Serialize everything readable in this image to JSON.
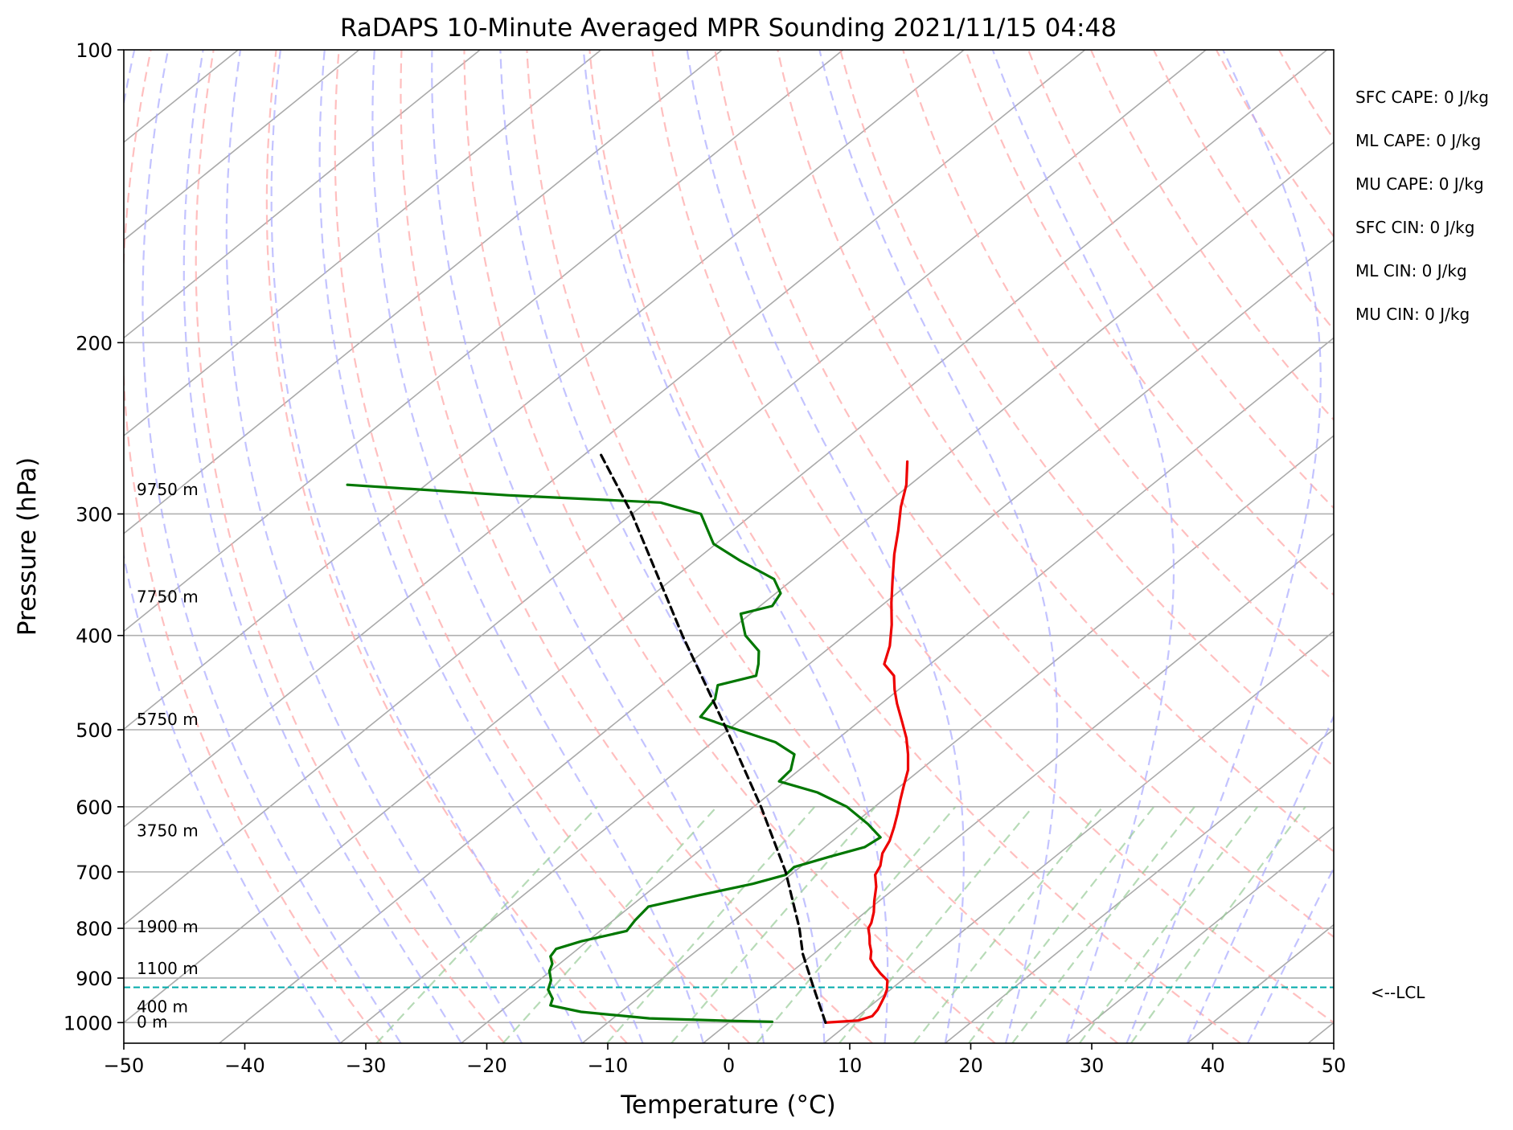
{
  "chart_data": {
    "type": "line",
    "title": "RaDAPS 10-Minute Averaged MPR Sounding 2021/11/15 04:48",
    "xlabel": "Temperature (°C)",
    "ylabel": "Pressure (hPa)",
    "xlim": [
      -50,
      50
    ],
    "ylim": [
      1050,
      100
    ],
    "y_scale": "log",
    "grid": true,
    "skew_t": true,
    "x_ticks": [
      -50,
      -40,
      -30,
      -20,
      -10,
      0,
      10,
      20,
      30,
      40,
      50
    ],
    "x_tick_labels": [
      "−50",
      "−40",
      "−30",
      "−20",
      "−10",
      "0",
      "10",
      "20",
      "30",
      "40",
      "50"
    ],
    "y_ticks": [
      1000,
      900,
      800,
      700,
      600,
      500,
      400,
      300,
      200,
      100
    ],
    "y_tick_labels": [
      "1000",
      "900",
      "800",
      "700",
      "600",
      "500",
      "400",
      "300",
      "200",
      "100"
    ],
    "series": [
      {
        "role": "temperature",
        "color": "#ee0000",
        "points": [
          [
            1000,
            8.0
          ],
          [
            995,
            10.5
          ],
          [
            985,
            11.2
          ],
          [
            970,
            11.0
          ],
          [
            955,
            10.6
          ],
          [
            940,
            10.2
          ],
          [
            925,
            9.7
          ],
          [
            905,
            8.8
          ],
          [
            890,
            7.5
          ],
          [
            875,
            6.3
          ],
          [
            860,
            5.2
          ],
          [
            845,
            4.5
          ],
          [
            830,
            3.6
          ],
          [
            815,
            2.8
          ],
          [
            800,
            1.9
          ],
          [
            790,
            1.6
          ],
          [
            770,
            0.7
          ],
          [
            750,
            -0.4
          ],
          [
            725,
            -1.7
          ],
          [
            705,
            -3.0
          ],
          [
            690,
            -3.5
          ],
          [
            670,
            -4.6
          ],
          [
            650,
            -5.3
          ],
          [
            630,
            -6.3
          ],
          [
            610,
            -7.4
          ],
          [
            590,
            -8.6
          ],
          [
            570,
            -9.8
          ],
          [
            550,
            -11.0
          ],
          [
            530,
            -12.6
          ],
          [
            510,
            -14.4
          ],
          [
            490,
            -16.5
          ],
          [
            470,
            -18.7
          ],
          [
            455,
            -20.3
          ],
          [
            440,
            -21.8
          ],
          [
            428,
            -23.8
          ],
          [
            410,
            -25.2
          ],
          [
            390,
            -27.2
          ],
          [
            370,
            -29.5
          ],
          [
            350,
            -31.8
          ],
          [
            330,
            -34.2
          ],
          [
            312,
            -36.3
          ],
          [
            295,
            -38.5
          ],
          [
            280,
            -40.3
          ],
          [
            265,
            -42.6
          ]
        ]
      },
      {
        "role": "dewpoint",
        "color": "#007700",
        "points": [
          [
            998,
            3.5
          ],
          [
            996,
            0.0
          ],
          [
            990,
            -7.0
          ],
          [
            975,
            -13.3
          ],
          [
            960,
            -16.5
          ],
          [
            945,
            -17.0
          ],
          [
            925,
            -18.3
          ],
          [
            905,
            -19.0
          ],
          [
            885,
            -20.1
          ],
          [
            870,
            -20.6
          ],
          [
            855,
            -21.5
          ],
          [
            840,
            -21.8
          ],
          [
            825,
            -20.5
          ],
          [
            805,
            -17.8
          ],
          [
            785,
            -18.2
          ],
          [
            760,
            -18.5
          ],
          [
            740,
            -15.5
          ],
          [
            720,
            -12.2
          ],
          [
            705,
            -10.4
          ],
          [
            692,
            -10.5
          ],
          [
            675,
            -8.6
          ],
          [
            660,
            -6.7
          ],
          [
            645,
            -6.4
          ],
          [
            625,
            -8.8
          ],
          [
            600,
            -12.3
          ],
          [
            580,
            -16.2
          ],
          [
            565,
            -20.5
          ],
          [
            550,
            -20.7
          ],
          [
            530,
            -22.0
          ],
          [
            515,
            -24.8
          ],
          [
            500,
            -29.2
          ],
          [
            485,
            -33.6
          ],
          [
            465,
            -34.2
          ],
          [
            450,
            -35.4
          ],
          [
            440,
            -33.2
          ],
          [
            428,
            -34.2
          ],
          [
            415,
            -35.5
          ],
          [
            400,
            -38.2
          ],
          [
            380,
            -40.8
          ],
          [
            373,
            -39.0
          ],
          [
            362,
            -39.6
          ],
          [
            350,
            -41.6
          ],
          [
            335,
            -46.3
          ],
          [
            322,
            -50.2
          ],
          [
            310,
            -52.4
          ],
          [
            300,
            -54.3
          ],
          [
            292,
            -58.8
          ],
          [
            287,
            -72.2
          ],
          [
            280,
            -86.5
          ]
        ]
      },
      {
        "role": "parcel",
        "color": "#000000",
        "dashed": true,
        "points": [
          [
            1000,
            8.0
          ],
          [
            920,
            3.4
          ],
          [
            850,
            -0.9
          ],
          [
            800,
            -3.8
          ],
          [
            700,
            -10.7
          ],
          [
            600,
            -19.4
          ],
          [
            500,
            -30.1
          ],
          [
            400,
            -43.4
          ],
          [
            300,
            -60.0
          ],
          [
            260,
            -68.8
          ]
        ]
      }
    ],
    "lcl": {
      "label": "<--LCL",
      "pressure": 920
    },
    "height_labels": [
      {
        "text": "9750 m",
        "pressure": 283
      },
      {
        "text": "7750 m",
        "pressure": 365
      },
      {
        "text": "5750 m",
        "pressure": 488
      },
      {
        "text": "3750 m",
        "pressure": 635
      },
      {
        "text": "1900 m",
        "pressure": 797
      },
      {
        "text": "1100 m",
        "pressure": 880
      },
      {
        "text": "400 m",
        "pressure": 963
      },
      {
        "text": "0 m",
        "pressure": 998
      }
    ],
    "indices": [
      "SFC CAPE: 0 J/kg",
      "ML CAPE: 0 J/kg",
      "MU CAPE: 0 J/kg",
      "SFC CIN: 0 J/kg",
      "ML CIN: 0 J/kg",
      "MU CIN: 0 J/kg"
    ],
    "reference_lines": {
      "isotherm_color": "#aaaaaa",
      "dry_adiabat_color": "#ffaaaa",
      "moist_adiabat_color": "#aaaaff",
      "mixing_ratio_color": "#99cc99",
      "lcl_color": "#00aaaa"
    }
  }
}
